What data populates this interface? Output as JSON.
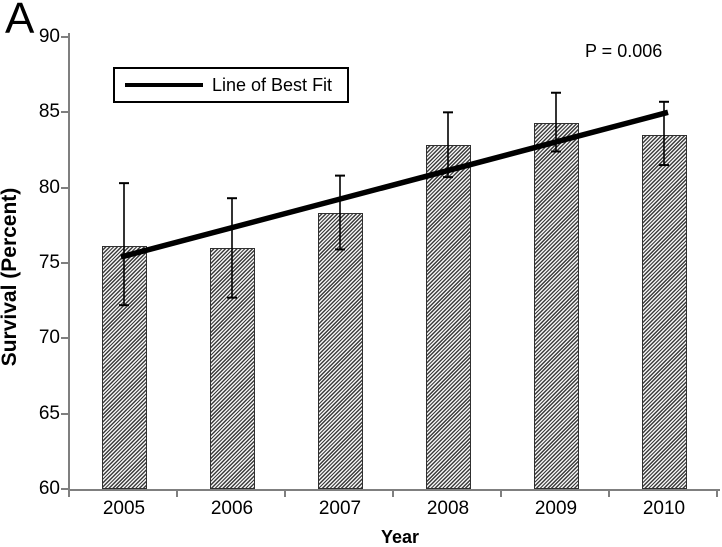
{
  "panel_label": "A",
  "annotation": {
    "p_value": "P = 0.006"
  },
  "legend": {
    "label": "Line of Best Fit"
  },
  "axes": {
    "y_title": "Survival (Percent)",
    "x_title": "Year",
    "y_ticks": [
      90,
      85,
      80,
      75,
      70,
      65,
      60
    ],
    "y_min": 60,
    "y_max": 90
  },
  "colors": {
    "background": "#ffffff",
    "text": "#000000",
    "axis_line": "#7f7f7f",
    "bar_hatch_dark": "#3f3f3f",
    "bar_hatch_light": "#f2f2f2",
    "bar_border": "#303030",
    "error_bar": "#000000",
    "trend_line": "#000000"
  },
  "chart_data": {
    "type": "bar",
    "title": "",
    "xlabel": "Year",
    "ylabel": "Survival (Percent)",
    "ylim": [
      60,
      90
    ],
    "grid": false,
    "legend_position": "top-left-inside",
    "categories": [
      "2005",
      "2006",
      "2007",
      "2008",
      "2009",
      "2010"
    ],
    "series": [
      {
        "name": "Survival",
        "style": "diagonal-hatch-bar",
        "values": [
          76.1,
          76.0,
          78.3,
          82.8,
          84.3,
          83.5
        ],
        "error_upper": [
          80.3,
          79.3,
          80.8,
          85.0,
          86.3,
          85.7
        ],
        "error_lower": [
          72.2,
          72.7,
          75.9,
          80.7,
          82.4,
          81.5
        ]
      }
    ],
    "trend_line": {
      "name": "Line of Best Fit",
      "points": [
        {
          "x": "2005",
          "y": 75.4
        },
        {
          "x": "2010",
          "y": 85.0
        }
      ]
    },
    "annotations": [
      {
        "text": "P = 0.006",
        "position": "top-right"
      }
    ]
  }
}
